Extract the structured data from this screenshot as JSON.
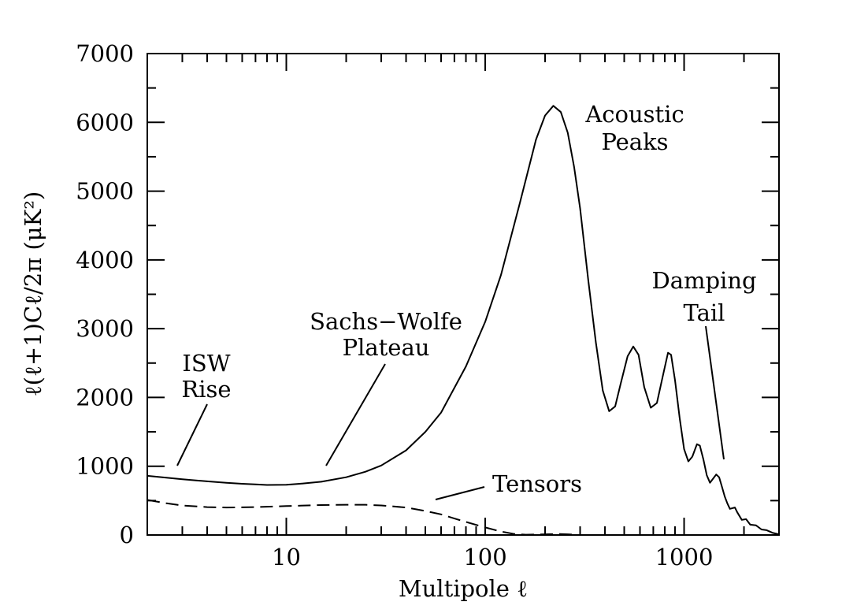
{
  "chart_data": {
    "type": "line",
    "xscale": "log",
    "xlim": [
      2,
      3000
    ],
    "ylim": [
      0,
      7000
    ],
    "xlabel": "Multipole ℓ",
    "ylabel": "ℓ(ℓ+1)Cℓ/2π (μK²)",
    "x_ticks": [
      10,
      100,
      1000
    ],
    "x_tick_labels": [
      "10",
      "100",
      "1000"
    ],
    "y_ticks": [
      0,
      1000,
      2000,
      3000,
      4000,
      5000,
      6000,
      7000
    ],
    "y_tick_labels": [
      "0",
      "1000",
      "2000",
      "3000",
      "4000",
      "5000",
      "6000",
      "7000"
    ],
    "grid": false,
    "series": [
      {
        "style": "solid",
        "color": "#000000",
        "points": [
          [
            2,
            860
          ],
          [
            3,
            810
          ],
          [
            4,
            780
          ],
          [
            5,
            760
          ],
          [
            6,
            745
          ],
          [
            7,
            735
          ],
          [
            8,
            728
          ],
          [
            10,
            730
          ],
          [
            12,
            748
          ],
          [
            15,
            775
          ],
          [
            20,
            840
          ],
          [
            25,
            920
          ],
          [
            30,
            1010
          ],
          [
            40,
            1230
          ],
          [
            50,
            1500
          ],
          [
            60,
            1780
          ],
          [
            80,
            2450
          ],
          [
            100,
            3100
          ],
          [
            120,
            3780
          ],
          [
            150,
            4850
          ],
          [
            180,
            5750
          ],
          [
            200,
            6100
          ],
          [
            220,
            6240
          ],
          [
            240,
            6150
          ],
          [
            260,
            5850
          ],
          [
            280,
            5350
          ],
          [
            300,
            4750
          ],
          [
            330,
            3700
          ],
          [
            360,
            2800
          ],
          [
            390,
            2100
          ],
          [
            420,
            1800
          ],
          [
            450,
            1870
          ],
          [
            480,
            2200
          ],
          [
            520,
            2600
          ],
          [
            555,
            2740
          ],
          [
            590,
            2620
          ],
          [
            630,
            2150
          ],
          [
            680,
            1850
          ],
          [
            730,
            1920
          ],
          [
            780,
            2300
          ],
          [
            830,
            2650
          ],
          [
            860,
            2620
          ],
          [
            900,
            2250
          ],
          [
            950,
            1700
          ],
          [
            1000,
            1250
          ],
          [
            1050,
            1070
          ],
          [
            1100,
            1140
          ],
          [
            1160,
            1320
          ],
          [
            1200,
            1300
          ],
          [
            1250,
            1100
          ],
          [
            1300,
            870
          ],
          [
            1350,
            760
          ],
          [
            1400,
            820
          ],
          [
            1450,
            880
          ],
          [
            1500,
            840
          ],
          [
            1550,
            700
          ],
          [
            1600,
            560
          ],
          [
            1650,
            460
          ],
          [
            1700,
            380
          ],
          [
            1800,
            400
          ],
          [
            1850,
            330
          ],
          [
            1950,
            220
          ],
          [
            2050,
            230
          ],
          [
            2150,
            150
          ],
          [
            2300,
            140
          ],
          [
            2450,
            80
          ],
          [
            2600,
            70
          ],
          [
            2800,
            30
          ],
          [
            3000,
            10
          ]
        ]
      },
      {
        "name": "Tensors",
        "style": "dashed",
        "color": "#000000",
        "points": [
          [
            2,
            510
          ],
          [
            2.5,
            460
          ],
          [
            3,
            430
          ],
          [
            4,
            405
          ],
          [
            5,
            400
          ],
          [
            7,
            405
          ],
          [
            10,
            420
          ],
          [
            15,
            435
          ],
          [
            20,
            440
          ],
          [
            25,
            440
          ],
          [
            30,
            430
          ],
          [
            40,
            400
          ],
          [
            50,
            350
          ],
          [
            60,
            300
          ],
          [
            70,
            240
          ],
          [
            80,
            190
          ],
          [
            100,
            110
          ],
          [
            120,
            50
          ],
          [
            140,
            15
          ],
          [
            160,
            5
          ],
          [
            200,
            10
          ],
          [
            230,
            15
          ],
          [
            260,
            10
          ],
          [
            300,
            0
          ]
        ]
      }
    ],
    "annotations": [
      {
        "lines": [
          "Acoustic",
          "Peaks"
        ]
      },
      {
        "lines": [
          "Damping",
          "Tail"
        ]
      },
      {
        "lines": [
          "Sachs−Wolfe",
          "Plateau"
        ]
      },
      {
        "lines": [
          "ISW",
          "Rise"
        ]
      },
      {
        "lines": [
          "Tensors"
        ]
      }
    ]
  }
}
